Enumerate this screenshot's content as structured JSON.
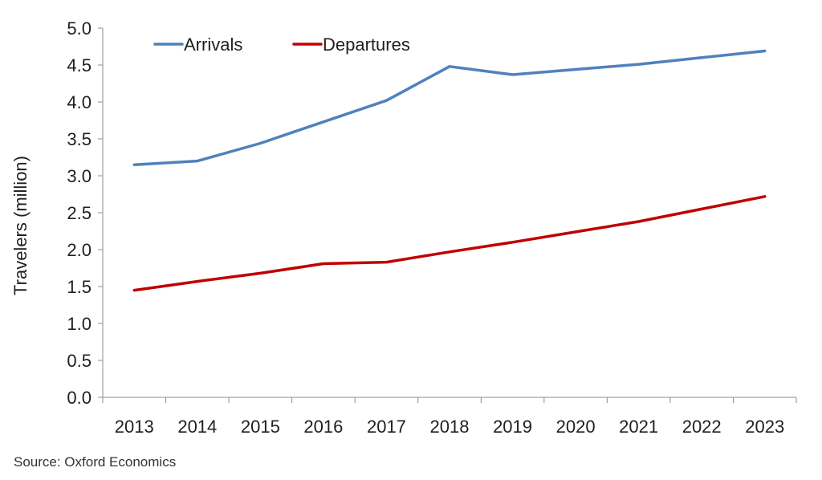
{
  "chart_data": {
    "type": "line",
    "categories": [
      "2013",
      "2014",
      "2015",
      "2016",
      "2017",
      "2018",
      "2019",
      "2020",
      "2021",
      "2022",
      "2023"
    ],
    "series": [
      {
        "name": "Arrivals",
        "color": "#4f81bd",
        "values": [
          3.15,
          3.2,
          3.44,
          3.73,
          4.02,
          4.48,
          4.37,
          4.44,
          4.51,
          4.6,
          4.69
        ]
      },
      {
        "name": "Departures",
        "color": "#c00000",
        "values": [
          1.45,
          1.57,
          1.68,
          1.81,
          1.83,
          1.97,
          2.1,
          2.24,
          2.38,
          2.55,
          2.72
        ]
      }
    ],
    "ylabel": "Travelers (million)",
    "xlabel": "",
    "ylim": [
      0,
      5.0
    ],
    "yticks": [
      "0.0",
      "0.5",
      "1.0",
      "1.5",
      "2.0",
      "2.5",
      "3.0",
      "3.5",
      "4.0",
      "4.5",
      "5.0"
    ],
    "grid": false,
    "legend_position": "top-left",
    "source": "Source: Oxford Economics"
  }
}
